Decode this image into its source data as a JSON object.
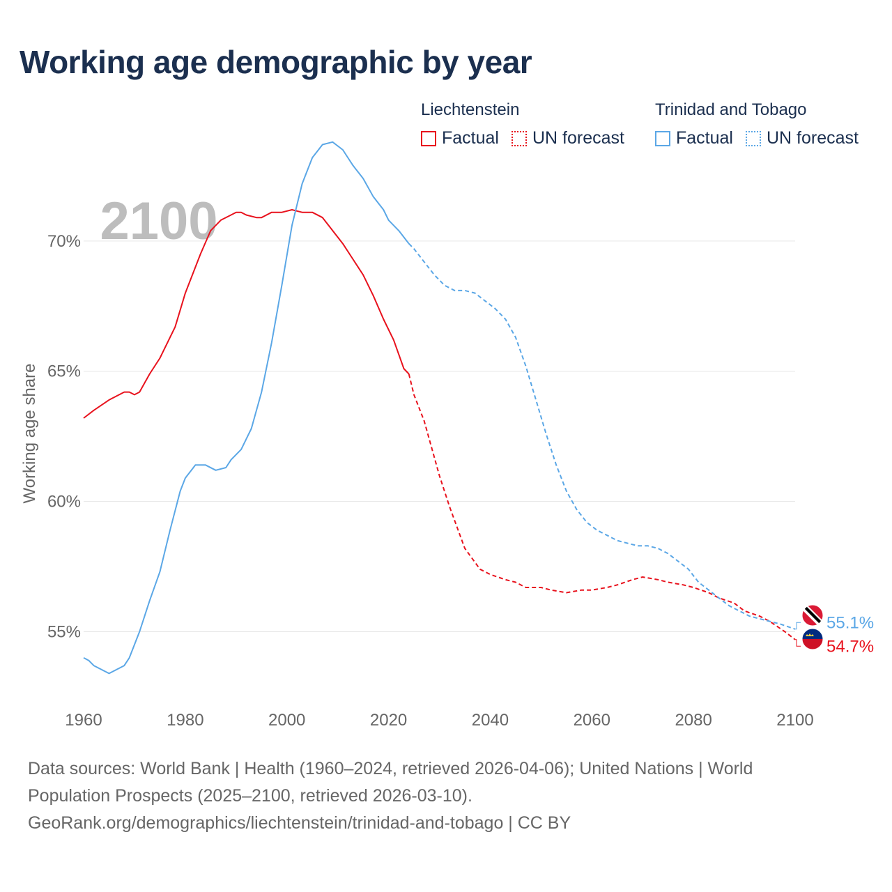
{
  "title": "Working age demographic by year",
  "legend": {
    "groups": [
      {
        "country": "Liechtenstein",
        "factual_label": "Factual",
        "forecast_label": "UN forecast",
        "color": "#e8121d"
      },
      {
        "country": "Trinidad and Tobago",
        "factual_label": "Factual",
        "forecast_label": "UN forecast",
        "color": "#5ba7e6"
      }
    ]
  },
  "year_watermark": "2100",
  "source": {
    "line1": "Data sources: World Bank | Health (1960–2024, retrieved 2026-04-06); United Nations | World",
    "line2": "Population Prospects (2025–2100, retrieved 2026-03-10).",
    "line3": "GeoRank.org/demographics/liechtenstein/trinidad-and-tobago | CC BY"
  },
  "chart_data": {
    "type": "line",
    "title": "Working age demographic by year",
    "xlabel": "",
    "ylabel": "Working age share",
    "xlim": [
      1960,
      2100
    ],
    "ylim": [
      52.5,
      73.5
    ],
    "x_ticks": [
      1960,
      1980,
      2000,
      2020,
      2040,
      2060,
      2080,
      2100
    ],
    "x_tick_labels": [
      "1960",
      "1980",
      "2000",
      "2020",
      "2040",
      "2060",
      "2080",
      "2100"
    ],
    "y_ticks": [
      55,
      60,
      65,
      70
    ],
    "y_tick_labels": [
      "55%",
      "60%",
      "65%",
      "70%"
    ],
    "grid": true,
    "factual_end_year": 2024,
    "series": [
      {
        "name": "Liechtenstein",
        "color": "#e8121d",
        "end_label": "54.7%",
        "flag": "liechtenstein-flag-icon",
        "points": [
          [
            1960,
            63.2
          ],
          [
            1962,
            63.5
          ],
          [
            1965,
            63.9
          ],
          [
            1968,
            64.2
          ],
          [
            1969,
            64.2
          ],
          [
            1970,
            64.1
          ],
          [
            1971,
            64.2
          ],
          [
            1973,
            64.9
          ],
          [
            1975,
            65.5
          ],
          [
            1978,
            66.7
          ],
          [
            1980,
            68.0
          ],
          [
            1983,
            69.5
          ],
          [
            1985,
            70.4
          ],
          [
            1987,
            70.8
          ],
          [
            1989,
            71.0
          ],
          [
            1990,
            71.1
          ],
          [
            1991,
            71.1
          ],
          [
            1992,
            71.0
          ],
          [
            1994,
            70.9
          ],
          [
            1995,
            70.9
          ],
          [
            1997,
            71.1
          ],
          [
            1999,
            71.1
          ],
          [
            2001,
            71.2
          ],
          [
            2003,
            71.1
          ],
          [
            2005,
            71.1
          ],
          [
            2007,
            70.9
          ],
          [
            2009,
            70.4
          ],
          [
            2011,
            69.9
          ],
          [
            2013,
            69.3
          ],
          [
            2015,
            68.7
          ],
          [
            2017,
            67.9
          ],
          [
            2019,
            67.0
          ],
          [
            2021,
            66.2
          ],
          [
            2023,
            65.1
          ],
          [
            2024,
            64.9
          ],
          [
            2025,
            64.1
          ],
          [
            2027,
            63.1
          ],
          [
            2030,
            61.0
          ],
          [
            2032,
            59.8
          ],
          [
            2035,
            58.2
          ],
          [
            2038,
            57.4
          ],
          [
            2040,
            57.2
          ],
          [
            2043,
            57.0
          ],
          [
            2045,
            56.9
          ],
          [
            2047,
            56.7
          ],
          [
            2050,
            56.7
          ],
          [
            2052,
            56.6
          ],
          [
            2055,
            56.5
          ],
          [
            2058,
            56.6
          ],
          [
            2060,
            56.6
          ],
          [
            2063,
            56.7
          ],
          [
            2065,
            56.8
          ],
          [
            2068,
            57.0
          ],
          [
            2070,
            57.1
          ],
          [
            2073,
            57.0
          ],
          [
            2075,
            56.9
          ],
          [
            2078,
            56.8
          ],
          [
            2080,
            56.7
          ],
          [
            2083,
            56.5
          ],
          [
            2085,
            56.3
          ],
          [
            2088,
            56.1
          ],
          [
            2090,
            55.8
          ],
          [
            2093,
            55.6
          ],
          [
            2095,
            55.4
          ],
          [
            2098,
            55.0
          ],
          [
            2100,
            54.7
          ]
        ]
      },
      {
        "name": "Trinidad and Tobago",
        "color": "#5ba7e6",
        "end_label": "55.1%",
        "flag": "trinidad-and-tobago-flag-icon",
        "points": [
          [
            1960,
            54.0
          ],
          [
            1961,
            53.9
          ],
          [
            1962,
            53.7
          ],
          [
            1965,
            53.4
          ],
          [
            1968,
            53.7
          ],
          [
            1969,
            54.0
          ],
          [
            1971,
            55.0
          ],
          [
            1973,
            56.2
          ],
          [
            1975,
            57.3
          ],
          [
            1977,
            58.9
          ],
          [
            1979,
            60.4
          ],
          [
            1980,
            60.9
          ],
          [
            1982,
            61.4
          ],
          [
            1984,
            61.4
          ],
          [
            1986,
            61.2
          ],
          [
            1988,
            61.3
          ],
          [
            1989,
            61.6
          ],
          [
            1991,
            62.0
          ],
          [
            1993,
            62.8
          ],
          [
            1995,
            64.2
          ],
          [
            1997,
            66.1
          ],
          [
            1999,
            68.3
          ],
          [
            2001,
            70.6
          ],
          [
            2003,
            72.2
          ],
          [
            2005,
            73.2
          ],
          [
            2007,
            73.7
          ],
          [
            2009,
            73.8
          ],
          [
            2011,
            73.5
          ],
          [
            2013,
            72.9
          ],
          [
            2015,
            72.4
          ],
          [
            2017,
            71.7
          ],
          [
            2019,
            71.2
          ],
          [
            2020,
            70.8
          ],
          [
            2022,
            70.4
          ],
          [
            2024,
            69.9
          ],
          [
            2025,
            69.7
          ],
          [
            2027,
            69.2
          ],
          [
            2029,
            68.7
          ],
          [
            2031,
            68.3
          ],
          [
            2033,
            68.1
          ],
          [
            2035,
            68.1
          ],
          [
            2037,
            68.0
          ],
          [
            2039,
            67.7
          ],
          [
            2041,
            67.4
          ],
          [
            2043,
            67.0
          ],
          [
            2045,
            66.3
          ],
          [
            2047,
            65.2
          ],
          [
            2049,
            63.9
          ],
          [
            2051,
            62.6
          ],
          [
            2053,
            61.4
          ],
          [
            2055,
            60.4
          ],
          [
            2057,
            59.7
          ],
          [
            2059,
            59.2
          ],
          [
            2061,
            58.9
          ],
          [
            2063,
            58.7
          ],
          [
            2065,
            58.5
          ],
          [
            2067,
            58.4
          ],
          [
            2069,
            58.3
          ],
          [
            2071,
            58.3
          ],
          [
            2073,
            58.2
          ],
          [
            2075,
            58.0
          ],
          [
            2077,
            57.7
          ],
          [
            2079,
            57.4
          ],
          [
            2081,
            56.9
          ],
          [
            2083,
            56.6
          ],
          [
            2085,
            56.3
          ],
          [
            2087,
            56.0
          ],
          [
            2089,
            55.8
          ],
          [
            2091,
            55.6
          ],
          [
            2093,
            55.5
          ],
          [
            2095,
            55.4
          ],
          [
            2097,
            55.3
          ],
          [
            2100,
            55.1
          ]
        ]
      }
    ]
  }
}
